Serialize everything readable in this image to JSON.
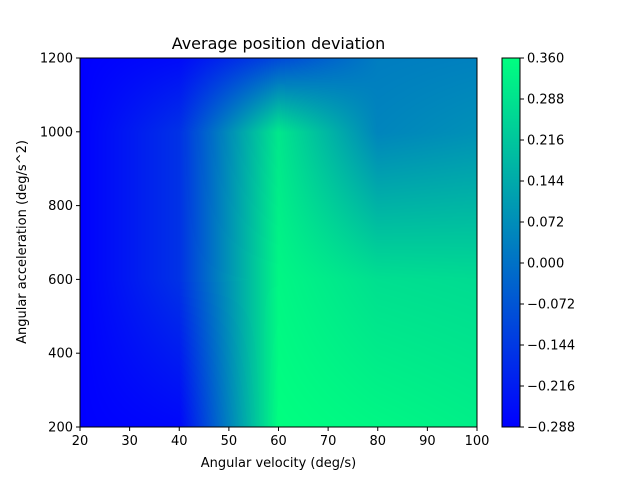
{
  "chart_data": {
    "type": "heatmap",
    "title": "Average position deviation",
    "xlabel": "Angular velocity (deg/s)",
    "ylabel": "Angular acceleration (deg/s^2)",
    "xlim": [
      20,
      100
    ],
    "ylim": [
      200,
      1200
    ],
    "x": [
      20,
      40,
      60,
      80,
      100
    ],
    "y": [
      200,
      600,
      1000,
      1200
    ],
    "z": [
      [
        -0.288,
        -0.27,
        0.36,
        0.34,
        0.32
      ],
      [
        -0.288,
        -0.16,
        0.34,
        0.28,
        0.27
      ],
      [
        -0.288,
        -0.16,
        0.3,
        0.05,
        0.08
      ],
      [
        -0.288,
        -0.26,
        -0.1,
        0.03,
        0.04
      ]
    ],
    "xticks": [
      "20",
      "30",
      "40",
      "50",
      "60",
      "70",
      "80",
      "90",
      "100"
    ],
    "yticks": [
      "200",
      "400",
      "600",
      "800",
      "1000",
      "1200"
    ],
    "colorbar": {
      "min": -0.288,
      "max": 0.36,
      "ticks": [
        "0.360",
        "0.288",
        "0.216",
        "0.144",
        "0.072",
        "0.000",
        "−0.072",
        "−0.144",
        "−0.216",
        "−0.288"
      ],
      "colormap": "winter",
      "color_low": "#0000ff",
      "color_high": "#00ff80"
    },
    "grid": false
  }
}
